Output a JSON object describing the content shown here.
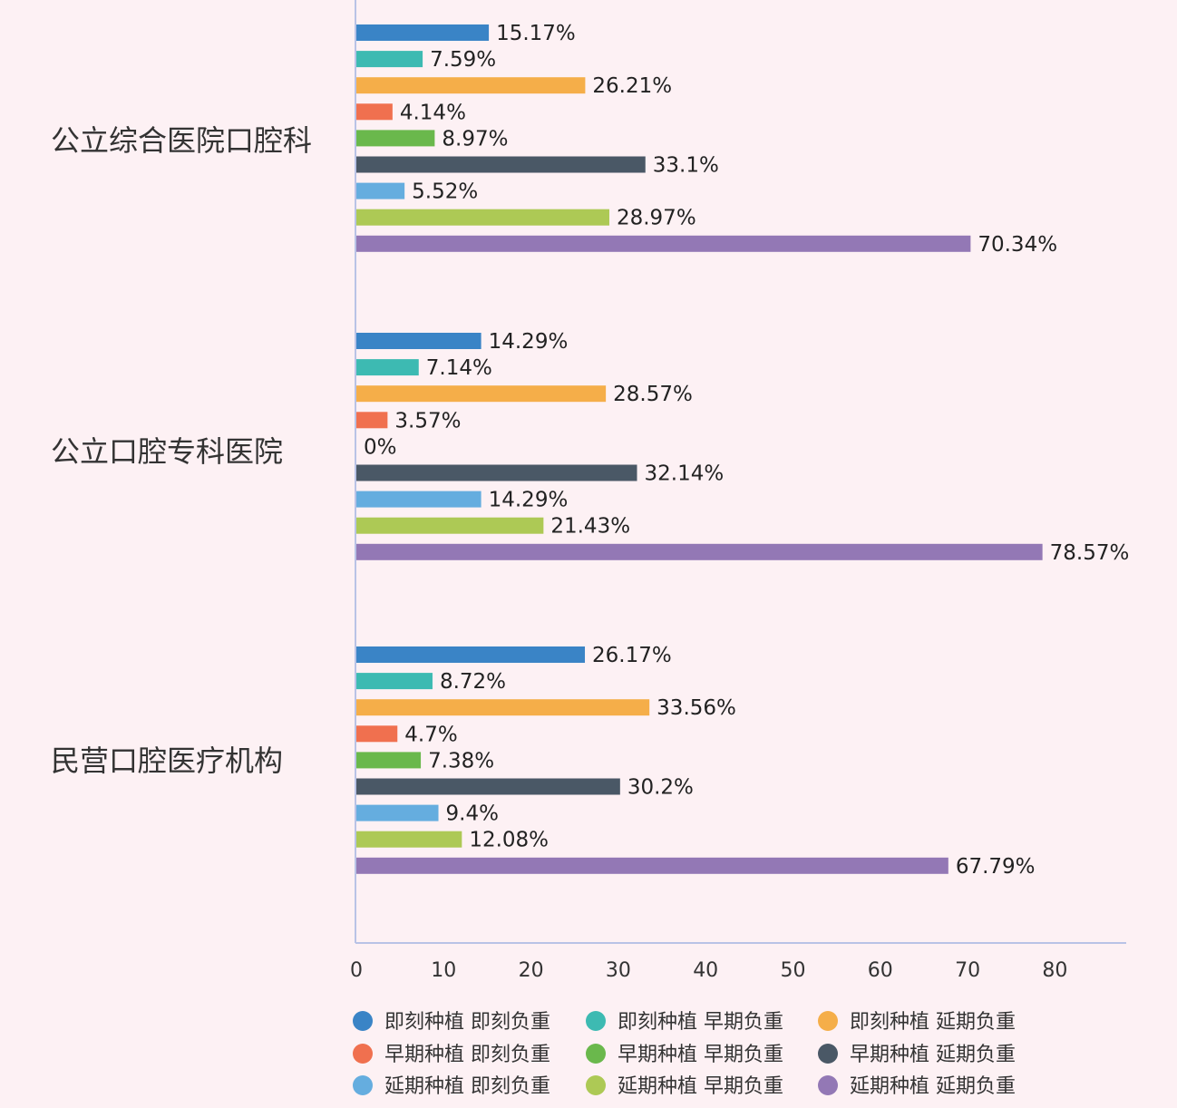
{
  "chart_data": {
    "type": "bar",
    "orientation": "horizontal",
    "categories": [
      "公立综合医院口腔科",
      "公立口腔专科医院",
      "民营口腔医疗机构"
    ],
    "series": [
      {
        "name": "即刻种植 即刻负重",
        "color": "#3a84c6",
        "values": [
          15.17,
          14.29,
          26.17
        ],
        "labels": [
          "15.17%",
          "14.29%",
          "26.17%"
        ]
      },
      {
        "name": "即刻种植 早期负重",
        "color": "#3dbab2",
        "values": [
          7.59,
          7.14,
          8.72
        ],
        "labels": [
          "7.59%",
          "7.14%",
          "8.72%"
        ]
      },
      {
        "name": "即刻种植 延期负重",
        "color": "#f5ae49",
        "values": [
          26.21,
          28.57,
          33.56
        ],
        "labels": [
          "26.21%",
          "28.57%",
          "33.56%"
        ]
      },
      {
        "name": "早期种植 即刻负重",
        "color": "#f0704f",
        "values": [
          4.14,
          3.57,
          4.7
        ],
        "labels": [
          "4.14%",
          "3.57%",
          "4.7%"
        ]
      },
      {
        "name": "早期种植 早期负重",
        "color": "#6ab84c",
        "values": [
          8.97,
          0,
          7.38
        ],
        "labels": [
          "8.97%",
          "0%",
          "7.38%"
        ]
      },
      {
        "name": "早期种植 延期负重",
        "color": "#4a5866",
        "values": [
          33.1,
          32.14,
          30.2
        ],
        "labels": [
          "33.1%",
          "32.14%",
          "30.2%"
        ]
      },
      {
        "name": "延期种植 即刻负重",
        "color": "#65addf",
        "values": [
          5.52,
          14.29,
          9.4
        ],
        "labels": [
          "5.52%",
          "14.29%",
          "9.4%"
        ]
      },
      {
        "name": "延期种植 早期负重",
        "color": "#adc955",
        "values": [
          28.97,
          21.43,
          12.08
        ],
        "labels": [
          "28.97%",
          "21.43%",
          "12.08%"
        ]
      },
      {
        "name": "延期种植 延期负重",
        "color": "#9378b5",
        "values": [
          70.34,
          78.57,
          67.79
        ],
        "labels": [
          "70.34%",
          "78.57%",
          "67.79%"
        ]
      }
    ],
    "x_ticks": [
      "0",
      "10",
      "20",
      "30",
      "40",
      "50",
      "60",
      "70",
      "80"
    ],
    "xlim": [
      0,
      80
    ],
    "legend_position": "bottom",
    "grid": false
  }
}
